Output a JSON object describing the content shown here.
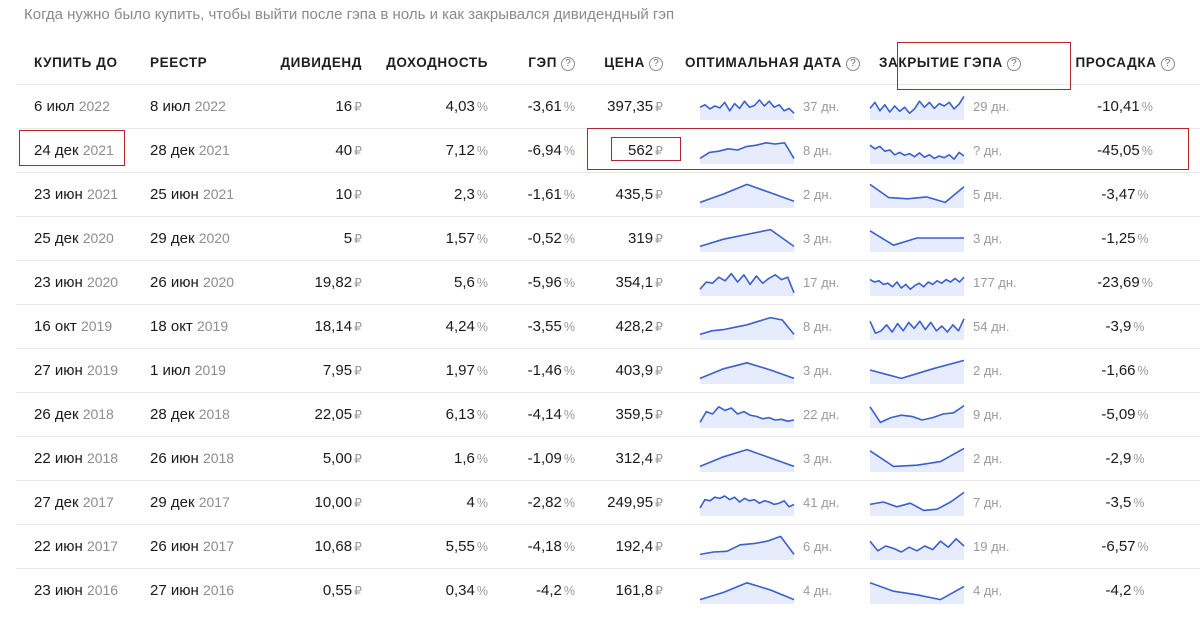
{
  "caption": "Когда нужно было купить, чтобы выйти после гэпа в ноль и как закрывался дивидендный гэп",
  "headers": {
    "buy": "КУПИТЬ ДО",
    "registry": "РЕЕСТР",
    "dividend": "ДИВИДЕНД",
    "yield": "ДОХОДНОСТЬ",
    "gap": "ГЭП",
    "price": "ЦЕНА",
    "optimal": "ОПТИМАЛЬНАЯ ДАТА",
    "gap_close": "ЗАКРЫТИЕ ГЭПА",
    "drawdown": "ПРОСАДКА"
  },
  "help_glyph": "?",
  "currency": "₽",
  "percent": "%",
  "colors": {
    "accent": "#3a5fd0",
    "spark_fill": "#e6ecfb",
    "highlight": "#b3262e"
  },
  "rows": [
    {
      "buy_day": "6 июл",
      "buy_year": "2022",
      "reg_day": "8 июл",
      "reg_year": "2022",
      "dividend": "16",
      "yield": "4,03",
      "gap": "-3,61",
      "price": "397,35",
      "opt_days": "37 дн.",
      "close_days": "29 дн.",
      "drawdown": "-10,41",
      "opt_spark": [
        0.55,
        0.45,
        0.62,
        0.5,
        0.58,
        0.35,
        0.7,
        0.4,
        0.6,
        0.3,
        0.55,
        0.48,
        0.25,
        0.5,
        0.3,
        0.55,
        0.45,
        0.7,
        0.6,
        0.8
      ],
      "close_spark": [
        0.6,
        0.35,
        0.7,
        0.45,
        0.75,
        0.5,
        0.72,
        0.55,
        0.8,
        0.62,
        0.3,
        0.55,
        0.35,
        0.6,
        0.4,
        0.5,
        0.35,
        0.62,
        0.42,
        0.1
      ]
    },
    {
      "buy_day": "24 дек",
      "buy_year": "2021",
      "reg_day": "28 дек",
      "reg_year": "2021",
      "dividend": "40",
      "yield": "7,12",
      "gap": "-6,94",
      "price": "562",
      "opt_days": "8 дн.",
      "close_days": "? дн.",
      "drawdown": "-45,05",
      "opt_spark": [
        0.85,
        0.6,
        0.55,
        0.45,
        0.5,
        0.35,
        0.3,
        0.2,
        0.25,
        0.2,
        0.85
      ],
      "close_spark": [
        0.3,
        0.45,
        0.35,
        0.55,
        0.5,
        0.7,
        0.6,
        0.72,
        0.65,
        0.78,
        0.62,
        0.8,
        0.7,
        0.85,
        0.75,
        0.82,
        0.7,
        0.88,
        0.6,
        0.75
      ]
    },
    {
      "buy_day": "23 июн",
      "buy_year": "2021",
      "reg_day": "25 июн",
      "reg_year": "2021",
      "dividend": "10",
      "yield": "2,3",
      "gap": "-1,61",
      "price": "435,5",
      "opt_days": "2 дн.",
      "close_days": "5 дн.",
      "drawdown": "-3,47",
      "opt_spark": [
        0.85,
        0.5,
        0.1,
        0.45,
        0.8
      ],
      "close_spark": [
        0.1,
        0.65,
        0.7,
        0.62,
        0.85,
        0.2
      ]
    },
    {
      "buy_day": "25 дек",
      "buy_year": "2020",
      "reg_day": "29 дек",
      "reg_year": "2020",
      "dividend": "5",
      "yield": "1,57",
      "gap": "-0,52",
      "price": "319",
      "opt_days": "3 дн.",
      "close_days": "3 дн.",
      "drawdown": "-1,25",
      "opt_spark": [
        0.85,
        0.55,
        0.35,
        0.15,
        0.85
      ],
      "close_spark": [
        0.2,
        0.8,
        0.5,
        0.5,
        0.5
      ]
    },
    {
      "buy_day": "23 июн",
      "buy_year": "2020",
      "reg_day": "26 июн",
      "reg_year": "2020",
      "dividend": "19,82",
      "yield": "5,6",
      "gap": "-5,96",
      "price": "354,1",
      "opt_days": "17 дн.",
      "close_days": "177 дн.",
      "drawdown": "-23,69",
      "opt_spark": [
        0.8,
        0.5,
        0.55,
        0.3,
        0.45,
        0.15,
        0.5,
        0.2,
        0.6,
        0.25,
        0.55,
        0.35,
        0.2,
        0.4,
        0.3,
        0.95
      ],
      "close_spark": [
        0.4,
        0.5,
        0.45,
        0.6,
        0.55,
        0.7,
        0.5,
        0.75,
        0.6,
        0.8,
        0.65,
        0.55,
        0.7,
        0.5,
        0.6,
        0.45,
        0.55,
        0.4,
        0.5,
        0.35,
        0.5,
        0.3
      ]
    },
    {
      "buy_day": "16 окт",
      "buy_year": "2019",
      "reg_day": "18 окт",
      "reg_year": "2019",
      "dividend": "18,14",
      "yield": "4,24",
      "gap": "-3,55",
      "price": "428,2",
      "opt_days": "8 дн.",
      "close_days": "54 дн.",
      "drawdown": "-3,9",
      "opt_spark": [
        0.85,
        0.7,
        0.65,
        0.55,
        0.45,
        0.3,
        0.15,
        0.25,
        0.85
      ],
      "close_spark": [
        0.3,
        0.8,
        0.7,
        0.45,
        0.75,
        0.4,
        0.7,
        0.35,
        0.6,
        0.3,
        0.65,
        0.35,
        0.7,
        0.5,
        0.75,
        0.45,
        0.7,
        0.2
      ]
    },
    {
      "buy_day": "27 июн",
      "buy_year": "2019",
      "reg_day": "1 июл",
      "reg_year": "2019",
      "dividend": "7,95",
      "yield": "1,97",
      "gap": "-1,46",
      "price": "403,9",
      "opt_days": "3 дн.",
      "close_days": "2 дн.",
      "drawdown": "-1,66",
      "opt_spark": [
        0.85,
        0.45,
        0.2,
        0.5,
        0.85
      ],
      "close_spark": [
        0.5,
        0.85,
        0.45,
        0.1
      ]
    },
    {
      "buy_day": "26 дек",
      "buy_year": "2018",
      "reg_day": "28 дек",
      "reg_year": "2018",
      "dividend": "22,05",
      "yield": "6,13",
      "gap": "-4,14",
      "price": "359,5",
      "opt_days": "22 дн.",
      "close_days": "9 дн.",
      "drawdown": "-5,09",
      "opt_spark": [
        0.85,
        0.4,
        0.5,
        0.2,
        0.35,
        0.25,
        0.5,
        0.4,
        0.55,
        0.6,
        0.7,
        0.65,
        0.75,
        0.72,
        0.8,
        0.75
      ],
      "close_spark": [
        0.2,
        0.85,
        0.65,
        0.55,
        0.6,
        0.75,
        0.65,
        0.5,
        0.45,
        0.15
      ]
    },
    {
      "buy_day": "22 июн",
      "buy_year": "2018",
      "reg_day": "26 июн",
      "reg_year": "2018",
      "dividend": "5,00",
      "yield": "1,6",
      "gap": "-1,09",
      "price": "312,4",
      "opt_days": "3 дн.",
      "close_days": "2 дн.",
      "drawdown": "-2,9",
      "opt_spark": [
        0.85,
        0.45,
        0.15,
        0.5,
        0.85
      ],
      "close_spark": [
        0.2,
        0.85,
        0.8,
        0.65,
        0.1
      ]
    },
    {
      "buy_day": "27 дек",
      "buy_year": "2017",
      "reg_day": "29 дек",
      "reg_year": "2017",
      "dividend": "10,00",
      "yield": "4",
      "gap": "-2,82",
      "price": "249,95",
      "opt_days": "41 дн.",
      "close_days": "7 дн.",
      "drawdown": "-3,5",
      "opt_spark": [
        0.75,
        0.4,
        0.45,
        0.3,
        0.35,
        0.25,
        0.4,
        0.3,
        0.5,
        0.35,
        0.45,
        0.4,
        0.55,
        0.45,
        0.5,
        0.6,
        0.55,
        0.45,
        0.7,
        0.6
      ],
      "close_spark": [
        0.6,
        0.5,
        0.7,
        0.55,
        0.85,
        0.8,
        0.5,
        0.1
      ]
    },
    {
      "buy_day": "22 июн",
      "buy_year": "2017",
      "reg_day": "26 июн",
      "reg_year": "2017",
      "dividend": "10,68",
      "yield": "5,55",
      "gap": "-4,18",
      "price": "192,4",
      "opt_days": "6 дн.",
      "close_days": "19 дн.",
      "drawdown": "-6,57",
      "opt_spark": [
        0.85,
        0.75,
        0.72,
        0.45,
        0.4,
        0.3,
        0.1,
        0.85
      ],
      "close_spark": [
        0.3,
        0.7,
        0.5,
        0.6,
        0.75,
        0.55,
        0.7,
        0.5,
        0.65,
        0.3,
        0.55,
        0.2,
        0.5
      ]
    },
    {
      "buy_day": "23 июн",
      "buy_year": "2016",
      "reg_day": "27 июн",
      "reg_year": "2016",
      "dividend": "0,55",
      "yield": "0,34",
      "gap": "-4,2",
      "price": "161,8",
      "opt_days": "4 дн.",
      "close_days": "4 дн.",
      "drawdown": "-4,2",
      "opt_spark": [
        0.9,
        0.6,
        0.2,
        0.5,
        0.9
      ],
      "close_spark": [
        0.2,
        0.55,
        0.7,
        0.9,
        0.35
      ]
    }
  ]
}
